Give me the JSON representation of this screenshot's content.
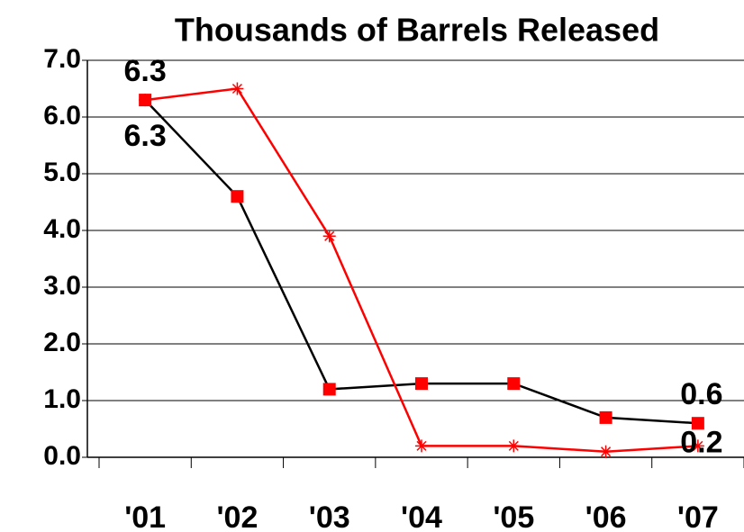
{
  "chart_data": {
    "type": "line",
    "title": "Thousands of Barrels Released",
    "categories": [
      "'01",
      "'02",
      "'03",
      "'04",
      "'05",
      "'06",
      "'07"
    ],
    "series": [
      {
        "color": "#000000",
        "marker_color": "#ff0000",
        "marker": "square",
        "values": [
          6.3,
          4.6,
          1.2,
          1.3,
          1.3,
          0.7,
          0.6
        ],
        "value_labels": [
          "6.3",
          null,
          null,
          null,
          null,
          null,
          "0.6"
        ]
      },
      {
        "color": "#ff0000",
        "marker_color": "#ff0000",
        "marker": "asterisk",
        "values": [
          6.3,
          6.5,
          3.9,
          0.2,
          0.2,
          0.1,
          0.2
        ],
        "value_labels": [
          "6.3",
          null,
          null,
          null,
          null,
          null,
          "0.2"
        ]
      }
    ],
    "ylim": [
      0,
      7
    ],
    "yticks": [
      {
        "value": 0,
        "label": "0.0"
      },
      {
        "value": 1,
        "label": "1.0"
      },
      {
        "value": 2,
        "label": "2.0"
      },
      {
        "value": 3,
        "label": "3.0"
      },
      {
        "value": 4,
        "label": "4.0"
      },
      {
        "value": 5,
        "label": "5.0"
      },
      {
        "value": 6,
        "label": "6.0"
      },
      {
        "value": 7,
        "label": "7.0"
      }
    ],
    "grid": true
  }
}
